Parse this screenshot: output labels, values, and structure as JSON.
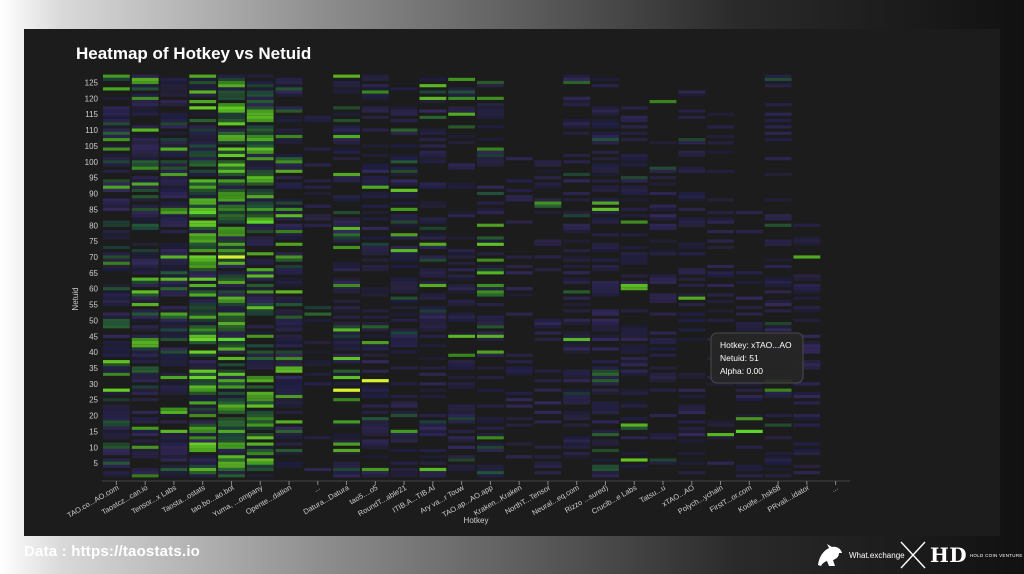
{
  "footer": {
    "source_text": "Data : https://taostats.io",
    "brand_what": "What.exchange",
    "brand_hold_mark": "HD",
    "brand_hold_text": "HOLD COIN VENTURE"
  },
  "colors": {
    "panel_bg": "#1c1c1c",
    "bright_green": "#5ad62a",
    "yellow_green": "#d8f22e",
    "dim_navy": "#1d1f45",
    "tooltip_bg": "#262626"
  },
  "chart_data": {
    "type": "heatmap",
    "title": "Heatmap of Hotkey vs Netuid",
    "xlabel": "Hotkey",
    "ylabel": "Netuid",
    "ylim": [
      0,
      128
    ],
    "yticks": [
      5,
      10,
      15,
      20,
      25,
      30,
      35,
      40,
      45,
      50,
      55,
      60,
      65,
      70,
      75,
      80,
      85,
      90,
      95,
      100,
      105,
      110,
      115,
      120,
      125
    ],
    "categories": [
      "TAO.co...AO.com",
      "Taostcz...can.io",
      "Tensor...x Labs",
      "Taosta...ostats",
      "tao.bo...ao.bot",
      "Yuma, ...ompany",
      "Opente...dation",
      "...",
      "Datura...Datura",
      "tao5....o5",
      "RoundT...able21",
      "ITIB.A...TIB.AI",
      "Ary va...r Touw",
      "TAO.ap...AO.app",
      "Kraken...Kraken",
      "NorthT...Tensor",
      "Neural...eq.com",
      "Rizzo ...sured)",
      "Crucib...e Labs",
      "Tatsu...u",
      "xTAO...AO",
      "Polych...ychain",
      "FirstT...or.com",
      "Koolfe...hsk68",
      "PRvali...idator",
      "..."
    ],
    "density": [
      0.75,
      0.75,
      0.75,
      0.85,
      0.9,
      0.8,
      0.7,
      0.15,
      0.65,
      0.55,
      0.5,
      0.5,
      0.5,
      0.5,
      0.25,
      0.3,
      0.5,
      0.5,
      0.45,
      0.3,
      0.3,
      0.3,
      0.25,
      0.4,
      0.3,
      0.1
    ],
    "intensity": [
      0.55,
      0.35,
      0.35,
      0.85,
      0.95,
      0.85,
      0.45,
      0.1,
      0.35,
      0.2,
      0.3,
      0.25,
      0.3,
      0.3,
      0.1,
      0.15,
      0.15,
      0.2,
      0.2,
      0.1,
      0.1,
      0.1,
      0.1,
      0.15,
      0.1,
      0.05
    ],
    "ymax_per_column": [
      127,
      127,
      126,
      127,
      127,
      127,
      127,
      120,
      127,
      127,
      127,
      127,
      127,
      127,
      101,
      100,
      127,
      126,
      118,
      120,
      125,
      119,
      85,
      127,
      80,
      0
    ],
    "highlights": [
      {
        "hotkey": "tao.bo...ao.bot",
        "netuid": 70,
        "alpha": 1.0
      },
      {
        "hotkey": "tao.bo...ao.bot",
        "netuid": 44,
        "alpha": 0.85
      },
      {
        "hotkey": "Datura...Datura",
        "netuid": 28,
        "alpha": 1.0
      },
      {
        "hotkey": "tao5....o5",
        "netuid": 31,
        "alpha": 1.0
      },
      {
        "hotkey": "FirstT...or.com",
        "netuid": 15,
        "alpha": 0.8
      },
      {
        "hotkey": "Koolfe...hsk68",
        "netuid": 31,
        "alpha": 0.7
      },
      {
        "hotkey": "Taosta...ostats",
        "netuid": 84,
        "alpha": 0.8
      },
      {
        "hotkey": "Yuma, ...ompany",
        "netuid": 81,
        "alpha": 0.85
      }
    ],
    "tooltip": {
      "line1": "Hotkey: xTAO...AO",
      "line2": "Netuid: 51",
      "line3": "Alpha: 0.00"
    }
  }
}
